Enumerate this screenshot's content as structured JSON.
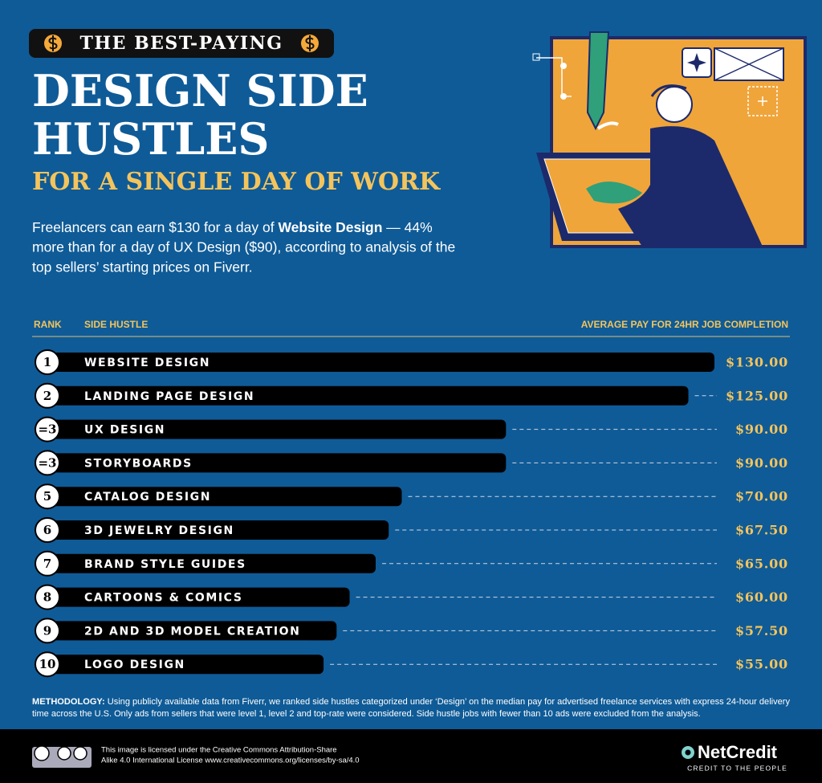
{
  "badge": "THE BEST-PAYING",
  "title_lines": [
    "DESIGN SIDE",
    "HUSTLES"
  ],
  "subtitle": "FOR A SINGLE DAY OF WORK",
  "description": [
    [
      "Freelancers can earn $130 for a day of ",
      "Website Design",
      " — 44%"
    ],
    [
      "more than for a day of UX Design ($90), according to analysis of the"
    ],
    [
      "top sellers’ starting prices on Fiverr."
    ]
  ],
  "chart_data": {
    "type": "bar",
    "orientation": "horizontal",
    "headers": {
      "rank": "RANK",
      "category": "SIDE HUSTLE",
      "value": "AVERAGE PAY FOR 24HR JOB COMPLETION"
    },
    "ranks": [
      "1",
      "2",
      "=3",
      "=3",
      "5",
      "6",
      "7",
      "8",
      "9",
      "10"
    ],
    "categories": [
      "WEBSITE DESIGN",
      "LANDING PAGE DESIGN",
      "UX DESIGN",
      "STORYBOARDS",
      "CATALOG DESIGN",
      "3D JEWELRY DESIGN",
      "BRAND STYLE GUIDES",
      "CARTOONS & COMICS",
      "2D AND 3D MODEL CREATION",
      "LOGO DESIGN"
    ],
    "values": [
      130,
      125,
      90,
      90,
      70,
      67.5,
      65,
      60,
      57.5,
      55
    ],
    "value_labels": [
      "$130.00",
      "$125.00",
      "$90.00",
      "$90.00",
      "$70.00",
      "$67.50",
      "$65.00",
      "$60.00",
      "$57.50",
      "$55.00"
    ],
    "color": "#000000"
  },
  "methodology": {
    "label": "METHODOLOGY:",
    "lines": [
      " Using publicly available data from Fiverr, we ranked side hustles categorized under ‘Design’ on the median pay for advertised freelance services with express 24-hour delivery",
      "time across the U.S. Only ads from sellers that were level 1, level 2 and top-rate were considered. Side hustle jobs with fewer than 10 ads were excluded from the analysis."
    ]
  },
  "footer": {
    "license_lines": [
      "This image is licensed under the Creative Commons Attribution-Share",
      "Alike 4.0 International License www.creativecommons.org/licenses/by-sa/4.0"
    ],
    "logo": "NetCredit",
    "tagline": "CREDIT TO THE PEOPLE"
  }
}
